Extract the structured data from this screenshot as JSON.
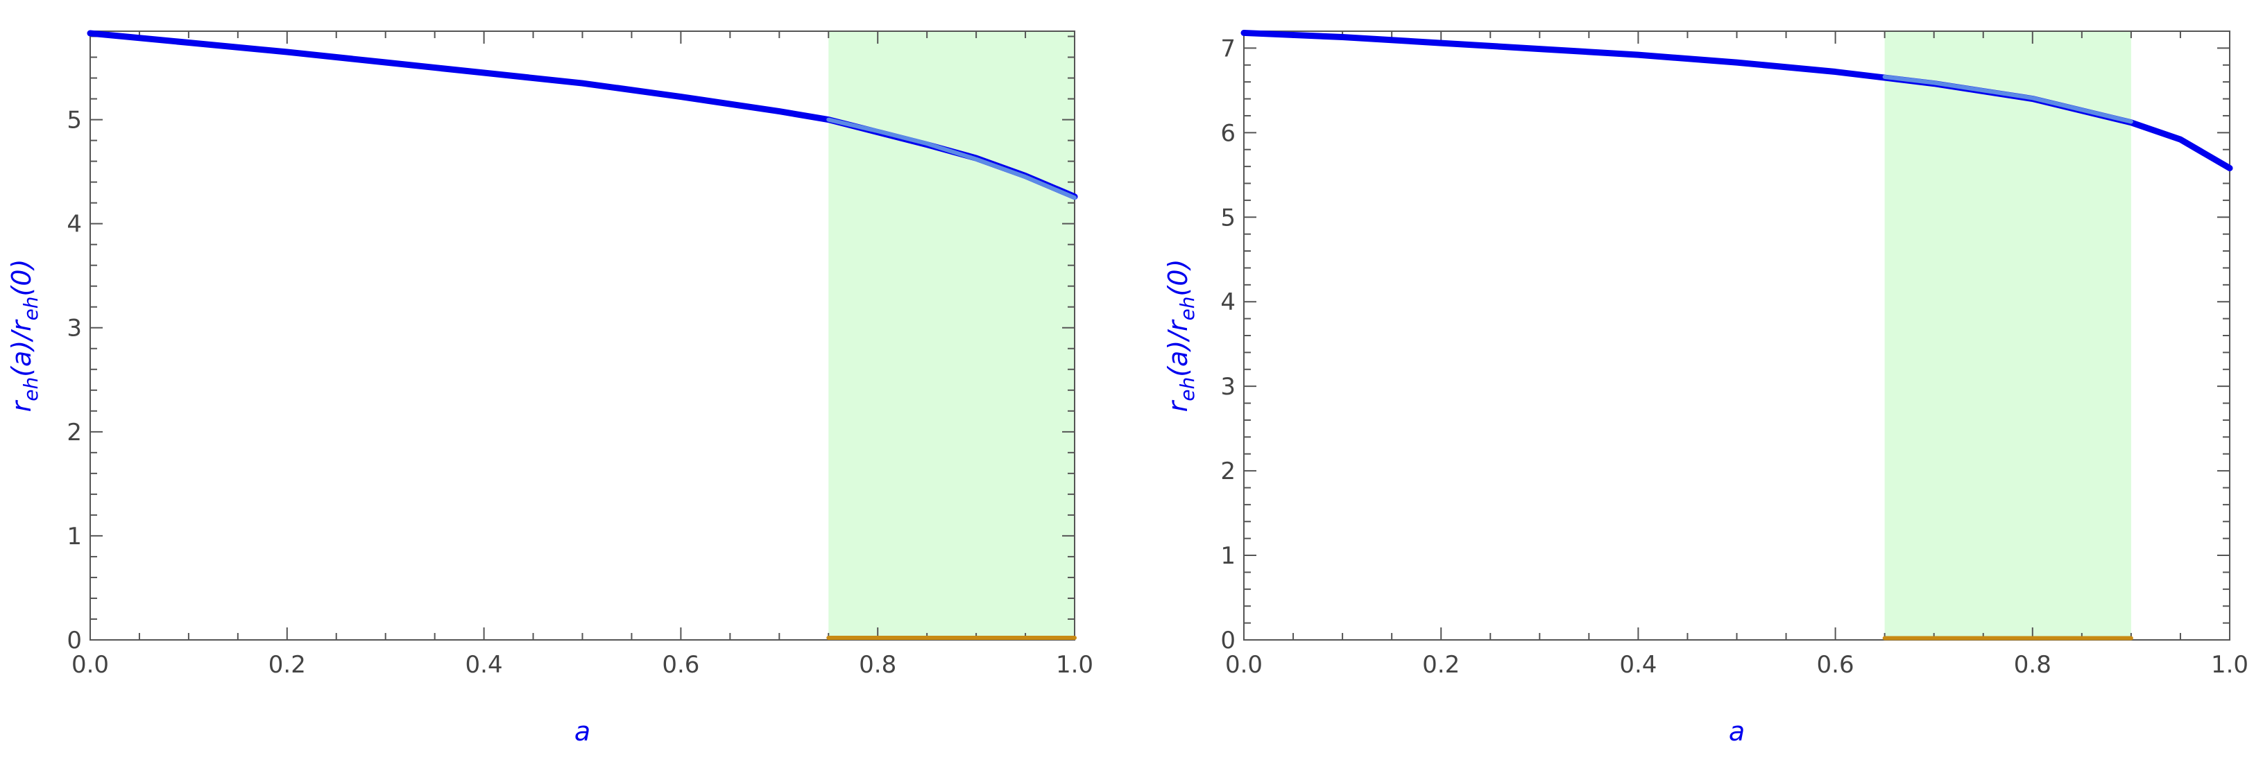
{
  "chart_data": [
    {
      "type": "line",
      "xlabel": "a",
      "ylabel": "r_eh(a)/r_eh(0)",
      "xlim": [
        0,
        1.0
      ],
      "ylim": [
        0,
        5.85
      ],
      "xticks": [
        "0.0",
        "0.2",
        "0.4",
        "0.6",
        "0.8",
        "1.0"
      ],
      "yticks": [
        "0",
        "1",
        "2",
        "3",
        "4",
        "5"
      ],
      "grid": false,
      "shaded_region": {
        "x": [
          0.75,
          1.0
        ],
        "color": "#dcfcdc"
      },
      "series": [
        {
          "color": "#0000ee",
          "x": [
            0.0,
            0.1,
            0.2,
            0.3,
            0.4,
            0.5,
            0.6,
            0.7,
            0.75,
            0.8,
            0.85,
            0.9,
            0.95,
            1.0
          ],
          "y": [
            5.83,
            5.74,
            5.65,
            5.55,
            5.45,
            5.35,
            5.22,
            5.08,
            5.0,
            4.88,
            4.76,
            4.63,
            4.46,
            4.26
          ]
        },
        {
          "color": "#5c8ae6",
          "x": [
            0.75,
            0.8,
            0.85,
            0.9,
            0.95,
            1.0
          ],
          "y": [
            5.0,
            4.89,
            4.77,
            4.62,
            4.45,
            4.25
          ]
        },
        {
          "color": "#c88a14",
          "x": [
            0.75,
            1.0
          ],
          "y": [
            0.02,
            0.02
          ]
        }
      ]
    },
    {
      "type": "line",
      "xlabel": "a",
      "ylabel": "r_eh(a)/r_eh(0)",
      "xlim": [
        0,
        1.0
      ],
      "ylim": [
        0,
        7.2
      ],
      "xticks": [
        "0.0",
        "0.2",
        "0.4",
        "0.6",
        "0.8",
        "1.0"
      ],
      "yticks": [
        "0",
        "1",
        "2",
        "3",
        "4",
        "5",
        "6",
        "7"
      ],
      "grid": false,
      "shaded_region": {
        "x": [
          0.65,
          0.9
        ],
        "color": "#dcfcdc"
      },
      "series": [
        {
          "color": "#0000ee",
          "x": [
            0.0,
            0.1,
            0.2,
            0.3,
            0.4,
            0.5,
            0.6,
            0.65,
            0.7,
            0.8,
            0.9,
            0.95,
            1.0
          ],
          "y": [
            7.18,
            7.13,
            7.06,
            6.99,
            6.92,
            6.83,
            6.72,
            6.65,
            6.58,
            6.4,
            6.12,
            5.92,
            5.58
          ]
        },
        {
          "color": "#5c8ae6",
          "x": [
            0.65,
            0.7,
            0.8,
            0.9
          ],
          "y": [
            6.66,
            6.59,
            6.41,
            6.13
          ]
        },
        {
          "color": "#c88a14",
          "x": [
            0.65,
            0.9
          ],
          "y": [
            0.02,
            0.02
          ]
        }
      ]
    }
  ]
}
